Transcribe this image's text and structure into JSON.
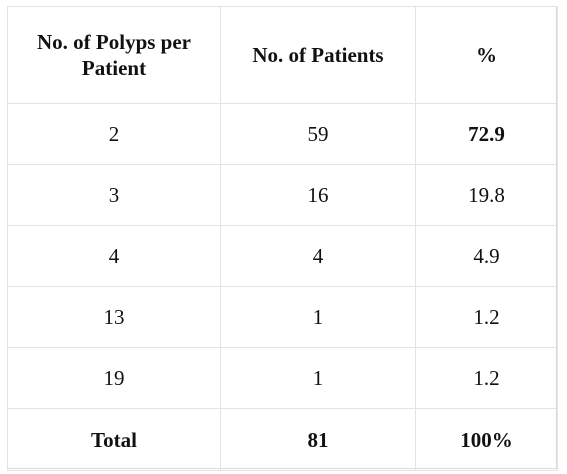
{
  "table": {
    "headers": [
      "No. of Polyps per Patient",
      "No. of Patients",
      "%"
    ],
    "rows": [
      {
        "polyps": "2",
        "patients": "59",
        "percent": "72.9",
        "percent_bold": true
      },
      {
        "polyps": "3",
        "patients": "16",
        "percent": "19.8",
        "percent_bold": false
      },
      {
        "polyps": "4",
        "patients": "4",
        "percent": "4.9",
        "percent_bold": false
      },
      {
        "polyps": "13",
        "patients": "1",
        "percent": "1.2",
        "percent_bold": false
      },
      {
        "polyps": "19",
        "patients": "1",
        "percent": "1.2",
        "percent_bold": false
      }
    ],
    "total": {
      "label": "Total",
      "patients": "81",
      "percent": "100%"
    }
  }
}
